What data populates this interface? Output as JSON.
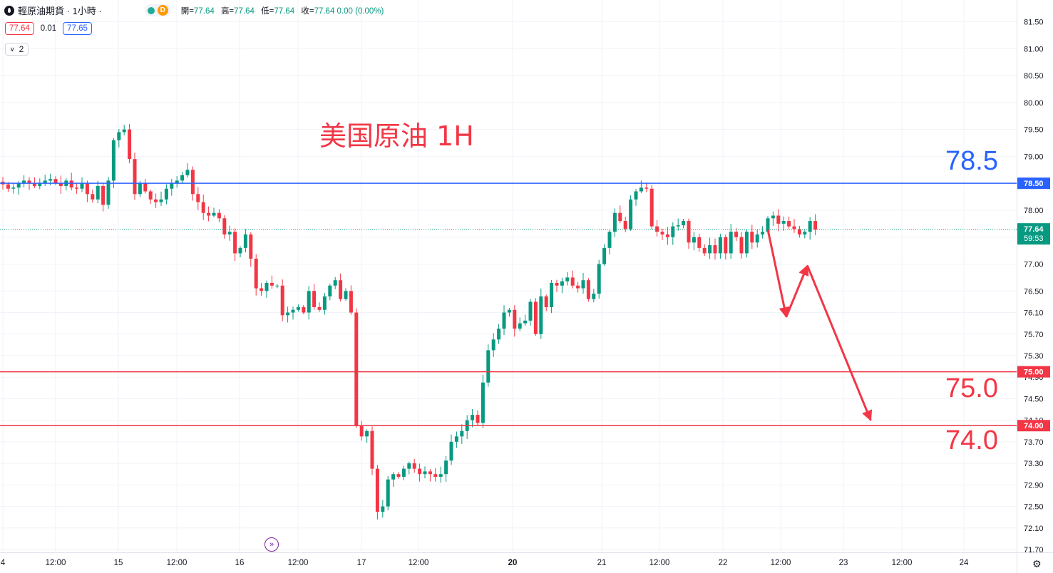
{
  "header": {
    "title": "輕原油期貨 · 1小時 ·",
    "badge": "D",
    "ohlc": [
      {
        "label": "開=",
        "value": "77.64"
      },
      {
        "label": "高=",
        "value": "77.64"
      },
      {
        "label": "低=",
        "value": "77.64"
      },
      {
        "label": "收=",
        "value": "77.64 0.00 (0.00%)"
      }
    ]
  },
  "quote": {
    "sell": "77.64",
    "spread": "0.01",
    "buy": "77.65"
  },
  "indicators_toggle": "2",
  "colors": {
    "up": "#089981",
    "down": "#f23645",
    "resistance": "#2962ff",
    "support": "#f23645",
    "annotation": "#f23645"
  },
  "chart_data": {
    "type": "candlestick",
    "title": "美国原油 1H",
    "ylim": [
      71.55,
      81.65
    ],
    "y_ticks": [
      "81.50",
      "81.00",
      "80.50",
      "80.00",
      "79.50",
      "79.00",
      "78.50",
      "78.00",
      "77.50",
      "77.00",
      "76.50",
      "76.10",
      "75.70",
      "75.30",
      "74.90",
      "74.50",
      "74.10",
      "73.70",
      "73.30",
      "72.90",
      "72.50",
      "72.10",
      "71.70"
    ],
    "x_ticks": [
      "4",
      "12:00",
      "15",
      "12:00",
      "16",
      "12:00",
      "17",
      "12:00",
      "20",
      "21",
      "12:00",
      "22",
      "12:00",
      "23",
      "12:00",
      "24"
    ],
    "last_price": {
      "value": "77.64",
      "countdown": "59:53"
    },
    "levels": [
      {
        "value": 78.5,
        "axis_label": "78.50",
        "text": "78.5",
        "color": "#2962ff"
      },
      {
        "value": 75.0,
        "axis_label": "75.00",
        "text": "75.0",
        "color": "#f23645"
      },
      {
        "value": 74.0,
        "axis_label": "74.00",
        "text": "74.0",
        "color": "#f23645"
      }
    ],
    "projection": [
      {
        "bar": 145,
        "price": 77.64
      },
      {
        "bar": 148.5,
        "price": 76.02
      },
      {
        "bar": 152.5,
        "price": 76.97
      },
      {
        "bar": 164.5,
        "price": 74.1
      }
    ],
    "closes": [
      78.48,
      78.4,
      78.42,
      78.5,
      78.55,
      78.5,
      78.45,
      78.5,
      78.55,
      78.58,
      78.5,
      78.45,
      78.55,
      78.42,
      78.4,
      78.5,
      78.3,
      78.2,
      78.45,
      78.1,
      78.55,
      79.3,
      79.45,
      79.5,
      78.95,
      78.3,
      78.5,
      78.35,
      78.2,
      78.15,
      78.2,
      78.4,
      78.5,
      78.55,
      78.65,
      78.75,
      78.3,
      78.15,
      77.95,
      77.9,
      77.95,
      77.85,
      77.55,
      77.6,
      77.2,
      77.3,
      77.55,
      77.1,
      76.55,
      76.5,
      76.65,
      76.6,
      76.6,
      76.05,
      76.1,
      76.15,
      76.2,
      76.1,
      76.5,
      76.2,
      76.15,
      76.4,
      76.6,
      76.7,
      76.35,
      76.5,
      76.1,
      74.0,
      73.8,
      73.9,
      73.2,
      72.4,
      72.5,
      73.0,
      73.1,
      73.05,
      73.2,
      73.3,
      73.2,
      73.1,
      73.15,
      73.1,
      73.05,
      73.1,
      73.35,
      73.7,
      73.8,
      73.9,
      74.1,
      74.2,
      74.05,
      74.8,
      75.4,
      75.6,
      75.8,
      76.1,
      76.15,
      75.8,
      75.9,
      75.95,
      76.3,
      75.7,
      76.4,
      76.2,
      76.65,
      76.6,
      76.68,
      76.75,
      76.6,
      76.55,
      76.7,
      76.35,
      76.45,
      77.0,
      77.3,
      77.6,
      77.95,
      77.8,
      77.65,
      78.2,
      78.35,
      78.42,
      78.4,
      77.7,
      77.6,
      77.55,
      77.5,
      77.7,
      77.72,
      77.8,
      77.4,
      77.5,
      77.3,
      77.2,
      77.35,
      77.2,
      77.5,
      77.2,
      77.6,
      77.5,
      77.2,
      77.6,
      77.4,
      77.55,
      77.6,
      77.85,
      77.9,
      77.75,
      77.8,
      77.7,
      77.65,
      77.55,
      77.6,
      77.8,
      77.64
    ]
  }
}
